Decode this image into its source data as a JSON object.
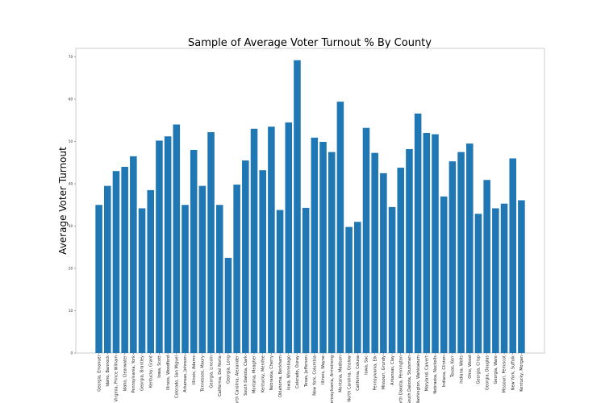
{
  "chart_data": {
    "type": "bar",
    "title": "Sample of Average Voter Turnout % By County",
    "xlabel": "",
    "ylabel": "Average Voter Turnout",
    "ylim": [
      0,
      72
    ],
    "yticks": [
      0,
      10,
      20,
      30,
      40,
      50,
      60,
      70
    ],
    "grid": false,
    "categories": [
      "Georgia, Emanuel",
      "Idaho, Bannock",
      "Virginia, Prince William",
      "Idaho, Clearwater",
      "Pennsylvania, York",
      "Georgia, Brantley",
      "Kentucky, Grant",
      "Iowa, Scott",
      "Illinois, Woodford",
      "Colorado, San Miguel",
      "Arkansas, Johnson",
      "Illinois, Adams",
      "Tennessee, Maury",
      "Georgia, Lincoln",
      "California, Del Norte",
      "Georgia, Long",
      "North Carolina, Alexander",
      "South Dakota, Clark",
      "Montana, Meagher",
      "Kentucky, Menifee",
      "Nebraska, Cherry",
      "Oklahoma, Beckham",
      "Iowa, Winnebago",
      "Colorado, Ouray",
      "Texas, Jefferson",
      "New York, Columbia",
      "Illinois, Wayne",
      "Pennsylvania, Armstrong",
      "Montana, Madison",
      "North Carolina, Onslow",
      "California, Colusa",
      "Iowa, Sac",
      "Pennsylvania, Elk",
      "Missouri, Grundy",
      "Arkansas, Clay",
      "North Dakota, Pennington",
      "South Dakota, Stutsman",
      "Washington, Wahkiakum",
      "Maryland, Calvert",
      "Nebraska, Nuckolls",
      "Indiana, Clinton",
      "Texas, Kerr",
      "Indiana, Wells",
      "Ohio, Wood",
      "Georgia, Crisp",
      "Georgia, Douglas",
      "Georgia, Ware",
      "Missouri, Pemiscot",
      "New York, Suffolk",
      "Kentucky, Morgan"
    ],
    "values": [
      35.0,
      39.5,
      43.0,
      44.0,
      46.5,
      34.2,
      38.5,
      50.2,
      51.2,
      54.0,
      35.0,
      48.0,
      39.5,
      52.2,
      35.0,
      22.5,
      39.8,
      45.5,
      53.0,
      43.2,
      53.5,
      33.8,
      54.5,
      69.2,
      34.3,
      50.9,
      49.9,
      47.5,
      59.4,
      29.8,
      31.0,
      53.2,
      47.3,
      42.5,
      34.5,
      43.8,
      48.2,
      56.6,
      52.0,
      51.7,
      37.0,
      45.3,
      47.5,
      49.5,
      32.9,
      40.9,
      34.2,
      35.3,
      46.0,
      36.1
    ],
    "bar_color": "#1f77b4"
  }
}
